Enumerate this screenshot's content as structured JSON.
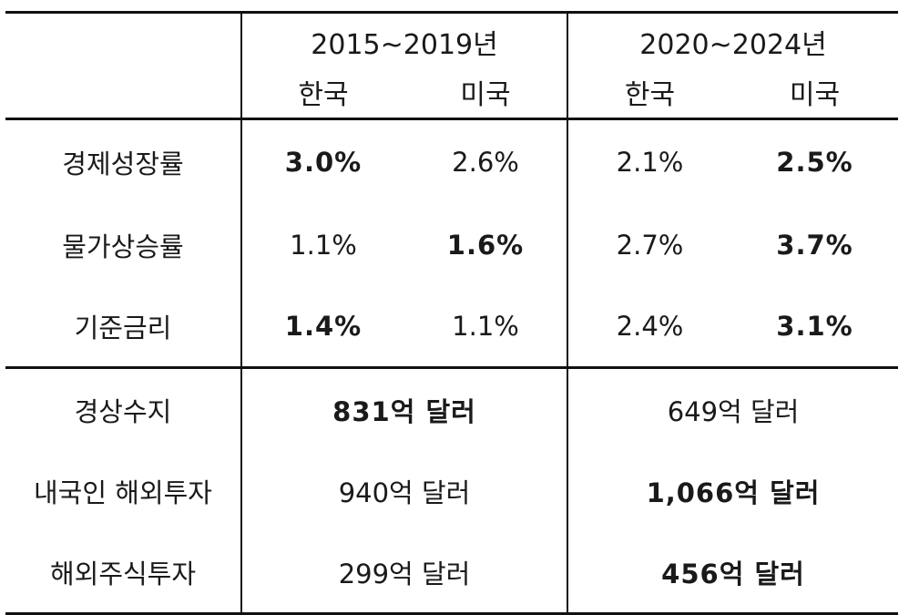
{
  "header": {
    "period1": "2015~2019년",
    "period2": "2020~2024년",
    "sub": [
      "한국",
      "미국",
      "한국",
      "미국"
    ]
  },
  "rows_split": [
    {
      "label": "경제성장률",
      "values": [
        "3.0%",
        "2.6%",
        "2.1%",
        "2.5%"
      ],
      "bold": [
        true,
        false,
        false,
        true
      ]
    },
    {
      "label": "물가상승률",
      "values": [
        "1.1%",
        "1.6%",
        "2.7%",
        "3.7%"
      ],
      "bold": [
        false,
        true,
        false,
        true
      ]
    },
    {
      "label": "기준금리",
      "values": [
        "1.4%",
        "1.1%",
        "2.4%",
        "3.1%"
      ],
      "bold": [
        true,
        false,
        false,
        true
      ]
    }
  ],
  "rows_merged": [
    {
      "label": "경상수지",
      "values": [
        "831억 달러",
        "649억 달러"
      ],
      "bold": [
        true,
        false
      ]
    },
    {
      "label": "내국인 해외투자",
      "values": [
        "940억 달러",
        "1,066억 달러"
      ],
      "bold": [
        false,
        true
      ]
    },
    {
      "label": "해외주식투자",
      "values": [
        "299억 달러",
        "456억 달러"
      ],
      "bold": [
        false,
        true
      ]
    }
  ]
}
